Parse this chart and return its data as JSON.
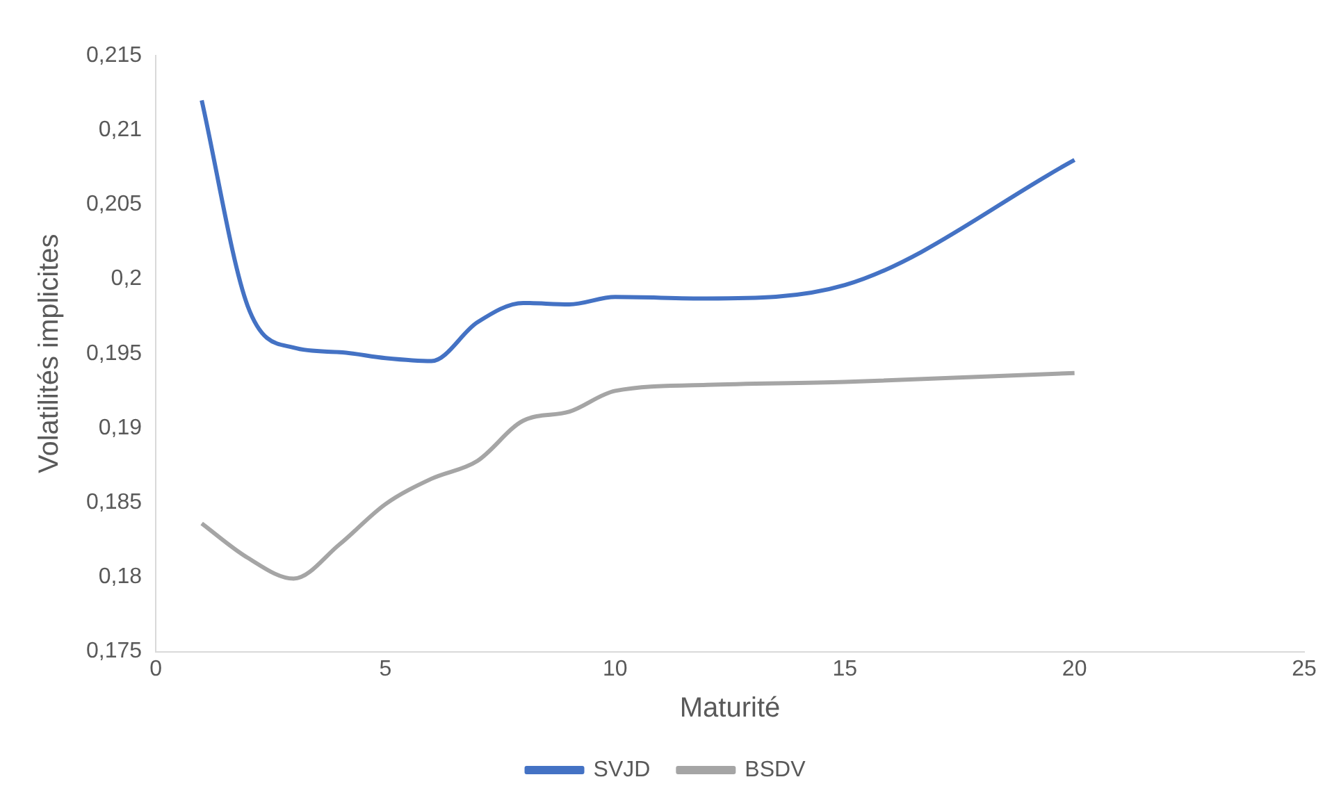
{
  "chart_data": {
    "type": "line",
    "xlabel": "Maturité",
    "ylabel": "Volatilités implicites",
    "x": [
      1,
      2,
      3,
      4,
      5,
      6,
      7,
      8,
      9,
      10,
      12,
      15,
      20
    ],
    "series": [
      {
        "name": "SVJD",
        "color": "#4472c4",
        "values": [
          0.212,
          0.1982,
          0.1954,
          0.1951,
          0.1947,
          0.1945,
          0.1971,
          0.1984,
          0.1983,
          0.1988,
          0.1987,
          0.1996,
          0.208
        ]
      },
      {
        "name": "BSDV",
        "color": "#a5a5a5",
        "values": [
          0.1836,
          0.1813,
          0.1799,
          0.1822,
          0.1849,
          0.1866,
          0.1878,
          0.1905,
          0.1911,
          0.1925,
          0.1929,
          0.1931,
          0.1937
        ]
      }
    ],
    "xlim": [
      0,
      25
    ],
    "xticks": [
      0,
      5,
      10,
      15,
      20,
      25
    ],
    "ylim": [
      0.175,
      0.215
    ],
    "yticks": [
      {
        "value": 0.175,
        "label": "0,175"
      },
      {
        "value": 0.18,
        "label": "0,18"
      },
      {
        "value": 0.185,
        "label": "0,185"
      },
      {
        "value": 0.19,
        "label": "0,19"
      },
      {
        "value": 0.195,
        "label": "0,195"
      },
      {
        "value": 0.2,
        "label": "0,2"
      },
      {
        "value": 0.205,
        "label": "0,205"
      },
      {
        "value": 0.21,
        "label": "0,21"
      },
      {
        "value": 0.215,
        "label": "0,215"
      }
    ],
    "grid": false,
    "legend": "bottom",
    "marker": "none",
    "line_style": "solid"
  }
}
